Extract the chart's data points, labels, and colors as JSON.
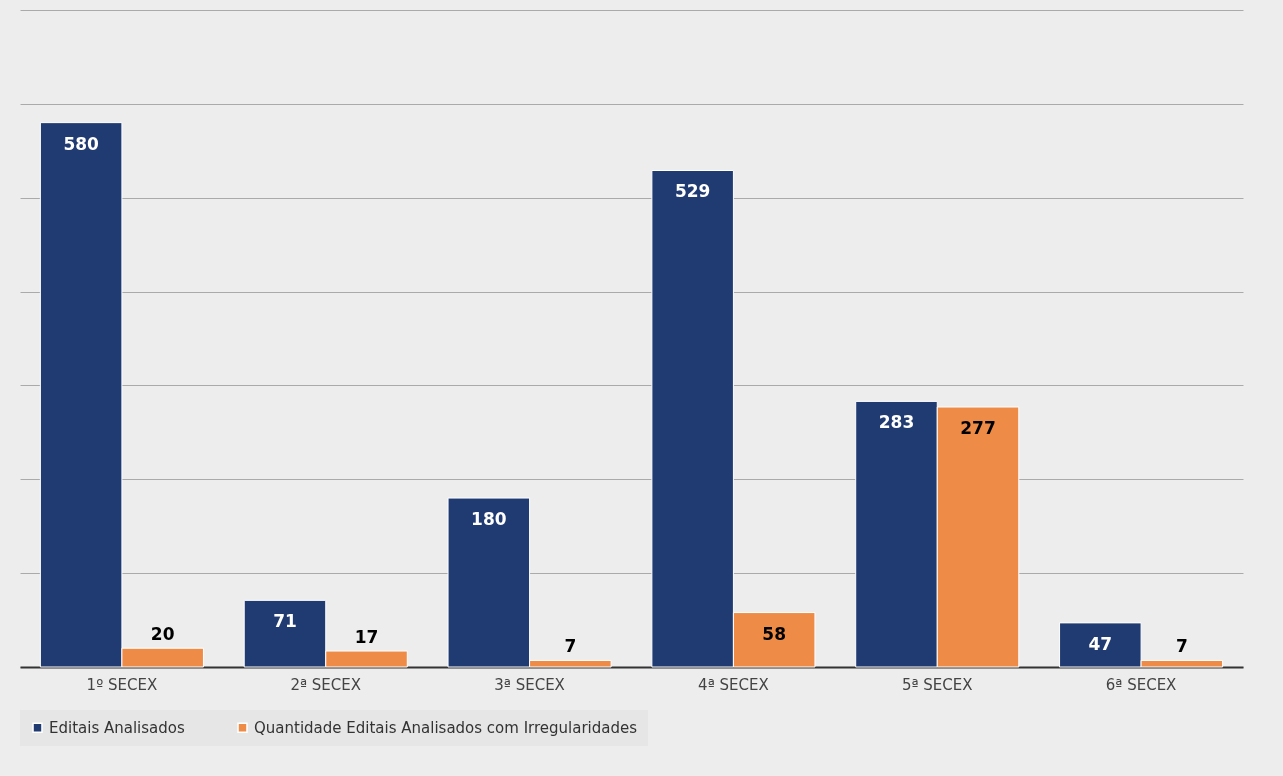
{
  "chart_data": {
    "type": "bar",
    "categories": [
      "1º SECEX",
      "2ª SECEX",
      "3ª SECEX",
      "4ª SECEX",
      "5ª SECEX",
      "6ª SECEX"
    ],
    "series": [
      {
        "name": "Editais Analisados",
        "color": "#203a72",
        "values": [
          580,
          71,
          180,
          529,
          283,
          47
        ]
      },
      {
        "name": "Quantidade Editais Analisados com Irregularidades",
        "color": "#ed8b47",
        "values": [
          20,
          17,
          7,
          58,
          277,
          7
        ]
      }
    ],
    "ylim": [
      0,
      700
    ],
    "yticks": [
      {
        "value": 0,
        "label": null
      },
      {
        "value": 100,
        "label": null
      },
      {
        "value": 200,
        "label": null
      },
      {
        "value": 300,
        "label": null
      },
      {
        "value": 400,
        "label": null
      },
      {
        "value": 500,
        "label": null
      },
      {
        "value": 600,
        "label": null
      },
      {
        "value": 700,
        "label": null
      }
    ],
    "tick_labels": "x",
    "grid": "y",
    "legend": "bottom",
    "data_labels": true
  }
}
